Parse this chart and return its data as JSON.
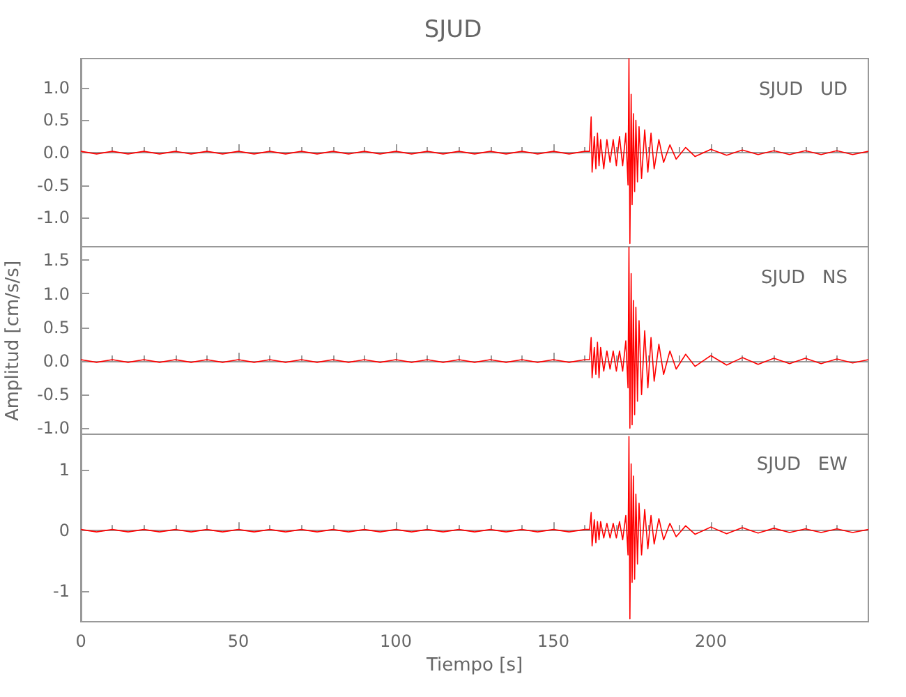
{
  "chart_data": [
    {
      "type": "line",
      "title": "SJUD",
      "annotations": [
        "SJUD   UD"
      ],
      "xlim": [
        0,
        250
      ],
      "xticks": [
        0,
        50,
        100,
        150,
        200
      ],
      "tick_labels": "y",
      "ylim": [
        -1.45,
        1.45
      ],
      "yticks": [
        {
          "value": -1,
          "label": "-1.0"
        },
        {
          "value": -0.5,
          "label": "-0.5"
        },
        {
          "value": 0,
          "label": "0.0"
        },
        {
          "value": 0.5,
          "label": "0.5"
        },
        {
          "value": 1,
          "label": "1.0"
        }
      ],
      "x": [
        0,
        5,
        10,
        15,
        20,
        25,
        30,
        35,
        40,
        45,
        50,
        55,
        60,
        65,
        70,
        75,
        80,
        85,
        90,
        95,
        100,
        105,
        110,
        115,
        120,
        125,
        130,
        135,
        140,
        145,
        150,
        155,
        160,
        161.5,
        162,
        162.3,
        163,
        163.5,
        164,
        164.5,
        165,
        166,
        167,
        168,
        169,
        170,
        171,
        172,
        173,
        173.7,
        174,
        174.3,
        174.7,
        175,
        175.4,
        175.8,
        176.2,
        176.7,
        177.2,
        178,
        179,
        180,
        181,
        182,
        183.5,
        185,
        187,
        189,
        192,
        195,
        200,
        205,
        210,
        215,
        220,
        225,
        230,
        235,
        240,
        245,
        250
      ],
      "series": [
        {
          "color": "#ff0000",
          "values": [
            0.02,
            -0.02,
            0.02,
            -0.02,
            0.02,
            -0.02,
            0.02,
            -0.02,
            0.02,
            -0.02,
            0.02,
            -0.02,
            0.02,
            -0.02,
            0.02,
            -0.02,
            0.02,
            -0.02,
            0.02,
            -0.02,
            0.02,
            -0.02,
            0.02,
            -0.02,
            0.02,
            -0.02,
            0.02,
            -0.02,
            0.02,
            -0.02,
            0.02,
            -0.02,
            0.02,
            0.02,
            0.55,
            -0.3,
            0.25,
            -0.25,
            0.3,
            -0.2,
            0.2,
            -0.25,
            0.2,
            -0.15,
            0.2,
            -0.2,
            0.25,
            -0.2,
            0.3,
            -0.5,
            1.45,
            -1.4,
            0.9,
            -0.8,
            0.6,
            -0.6,
            0.5,
            -0.45,
            0.4,
            -0.4,
            0.35,
            -0.3,
            0.3,
            -0.25,
            0.2,
            -0.15,
            0.12,
            -0.1,
            0.08,
            -0.06,
            0.05,
            -0.04,
            0.04,
            -0.03,
            0.03,
            -0.03,
            0.03,
            -0.03,
            0.03,
            -0.03,
            0.02
          ]
        }
      ]
    },
    {
      "type": "line",
      "ylabel": "Amplitud [cm/s/s]",
      "annotations": [
        "SJUD   NS"
      ],
      "xlim": [
        0,
        250
      ],
      "xticks": [
        0,
        50,
        100,
        150,
        200
      ],
      "tick_labels": "y",
      "ylim": [
        -1.1,
        1.7
      ],
      "yticks": [
        {
          "value": -1,
          "label": "-1.0"
        },
        {
          "value": -0.5,
          "label": "-0.5"
        },
        {
          "value": 0,
          "label": "0.0"
        },
        {
          "value": 0.5,
          "label": "0.5"
        },
        {
          "value": 1,
          "label": "1.0"
        },
        {
          "value": 1.5,
          "label": "1.5"
        }
      ],
      "x": [
        0,
        5,
        10,
        15,
        20,
        25,
        30,
        35,
        40,
        45,
        50,
        55,
        60,
        65,
        70,
        75,
        80,
        85,
        90,
        95,
        100,
        105,
        110,
        115,
        120,
        125,
        130,
        135,
        140,
        145,
        150,
        155,
        160,
        161.5,
        162,
        162.3,
        163,
        163.5,
        164,
        164.5,
        165,
        166,
        167,
        168,
        169,
        170,
        171,
        172,
        173,
        173.7,
        174,
        174.3,
        174.7,
        175,
        175.4,
        175.8,
        176.2,
        176.7,
        177.2,
        178,
        179,
        180,
        181,
        182,
        183.5,
        185,
        187,
        189,
        192,
        195,
        200,
        205,
        210,
        215,
        220,
        225,
        230,
        235,
        240,
        245,
        250
      ],
      "series": [
        {
          "color": "#ff0000",
          "values": [
            0.02,
            -0.02,
            0.02,
            -0.02,
            0.02,
            -0.02,
            0.02,
            -0.02,
            0.02,
            -0.02,
            0.02,
            -0.02,
            0.02,
            -0.02,
            0.02,
            -0.02,
            0.02,
            -0.02,
            0.02,
            -0.02,
            0.02,
            -0.02,
            0.02,
            -0.02,
            0.02,
            -0.02,
            0.02,
            -0.02,
            0.02,
            -0.02,
            0.02,
            -0.02,
            0.02,
            0.02,
            0.35,
            -0.25,
            0.2,
            -0.2,
            0.28,
            -0.25,
            0.2,
            -0.15,
            0.15,
            -0.12,
            0.15,
            -0.15,
            0.15,
            -0.15,
            0.3,
            -0.4,
            1.7,
            -1.0,
            1.3,
            -0.95,
            0.9,
            -0.8,
            0.8,
            -0.6,
            0.6,
            -0.5,
            0.45,
            -0.4,
            0.35,
            -0.3,
            0.25,
            -0.2,
            0.15,
            -0.12,
            0.1,
            -0.08,
            0.08,
            -0.06,
            0.05,
            -0.05,
            0.04,
            -0.04,
            0.04,
            -0.04,
            0.03,
            -0.03,
            0.02
          ]
        }
      ]
    },
    {
      "type": "line",
      "xlabel": "Tiempo [s]",
      "annotations": [
        "SJUD   EW"
      ],
      "xlim": [
        0,
        250
      ],
      "xticks": [
        0,
        50,
        100,
        150,
        200
      ],
      "ylim": [
        -1.5,
        1.6
      ],
      "yticks": [
        -1,
        0,
        1
      ],
      "x": [
        0,
        5,
        10,
        15,
        20,
        25,
        30,
        35,
        40,
        45,
        50,
        55,
        60,
        65,
        70,
        75,
        80,
        85,
        90,
        95,
        100,
        105,
        110,
        115,
        120,
        125,
        130,
        135,
        140,
        145,
        150,
        155,
        160,
        161.5,
        162,
        162.3,
        163,
        163.5,
        164,
        164.5,
        165,
        166,
        167,
        168,
        169,
        170,
        171,
        172,
        173,
        173.7,
        174,
        174.3,
        174.7,
        175,
        175.4,
        175.8,
        176.2,
        176.7,
        177.2,
        178,
        179,
        180,
        181,
        182,
        183.5,
        185,
        187,
        189,
        192,
        195,
        200,
        205,
        210,
        215,
        220,
        225,
        230,
        235,
        240,
        245,
        250
      ],
      "series": [
        {
          "color": "#ff0000",
          "values": [
            0.02,
            -0.02,
            0.02,
            -0.02,
            0.02,
            -0.02,
            0.02,
            -0.02,
            0.02,
            -0.02,
            0.02,
            -0.02,
            0.02,
            -0.02,
            0.02,
            -0.02,
            0.02,
            -0.02,
            0.02,
            -0.02,
            0.02,
            -0.02,
            0.02,
            -0.02,
            0.02,
            -0.02,
            0.02,
            -0.02,
            0.02,
            -0.02,
            0.02,
            -0.02,
            0.02,
            0.02,
            0.3,
            -0.25,
            0.18,
            -0.2,
            0.15,
            -0.15,
            0.15,
            -0.12,
            0.12,
            -0.12,
            0.12,
            -0.12,
            0.15,
            -0.15,
            0.25,
            -0.4,
            1.55,
            -1.45,
            1.1,
            -0.85,
            0.9,
            -0.8,
            0.6,
            -0.55,
            0.45,
            -0.4,
            0.35,
            -0.3,
            0.25,
            -0.22,
            0.2,
            -0.15,
            0.12,
            -0.1,
            0.08,
            -0.06,
            0.06,
            -0.05,
            0.05,
            -0.04,
            0.04,
            -0.03,
            0.03,
            -0.03,
            0.03,
            -0.03,
            0.02
          ]
        }
      ]
    }
  ]
}
